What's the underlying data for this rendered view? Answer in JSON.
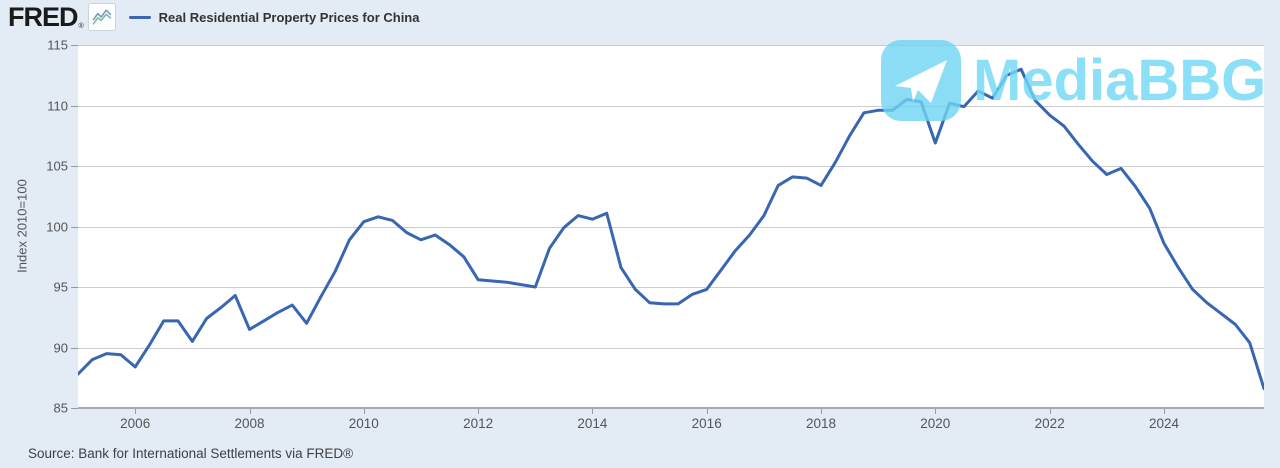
{
  "header": {
    "logo_text": "FRED",
    "logo_registered": "®",
    "legend_label": "Real Residential Property Prices for China"
  },
  "chart_data": {
    "type": "line",
    "title": "Real Residential Property Prices for China",
    "xlabel": "",
    "ylabel": "Index 2010=100",
    "ylim": [
      85,
      115
    ],
    "y_ticks": [
      115,
      110,
      105,
      100,
      95,
      90,
      85
    ],
    "x_tick_years": [
      "2006",
      "2008",
      "2010",
      "2012",
      "2014",
      "2016",
      "2018",
      "2020",
      "2022",
      "2024"
    ],
    "grid": true,
    "legend_position": "top-left",
    "frequency": "Quarterly",
    "series": [
      {
        "name": "Real Residential Property Prices for China",
        "color": "#3866b0",
        "quarters": [
          "2005 Q1",
          "2005 Q2",
          "2005 Q3",
          "2005 Q4",
          "2006 Q1",
          "2006 Q2",
          "2006 Q3",
          "2006 Q4",
          "2007 Q1",
          "2007 Q2",
          "2007 Q3",
          "2007 Q4",
          "2008 Q1",
          "2008 Q2",
          "2008 Q3",
          "2008 Q4",
          "2009 Q1",
          "2009 Q2",
          "2009 Q3",
          "2009 Q4",
          "2010 Q1",
          "2010 Q2",
          "2010 Q3",
          "2010 Q4",
          "2011 Q1",
          "2011 Q2",
          "2011 Q3",
          "2011 Q4",
          "2012 Q1",
          "2012 Q2",
          "2012 Q3",
          "2012 Q4",
          "2013 Q1",
          "2013 Q2",
          "2013 Q3",
          "2013 Q4",
          "2014 Q1",
          "2014 Q2",
          "2014 Q3",
          "2014 Q4",
          "2015 Q1",
          "2015 Q2",
          "2015 Q3",
          "2015 Q4",
          "2016 Q1",
          "2016 Q2",
          "2016 Q3",
          "2016 Q4",
          "2017 Q1",
          "2017 Q2",
          "2017 Q3",
          "2017 Q4",
          "2018 Q1",
          "2018 Q2",
          "2018 Q3",
          "2018 Q4",
          "2019 Q1",
          "2019 Q2",
          "2019 Q3",
          "2019 Q4",
          "2020 Q1",
          "2020 Q2",
          "2020 Q3",
          "2020 Q4",
          "2021 Q1",
          "2021 Q2",
          "2021 Q3",
          "2021 Q4",
          "2022 Q1",
          "2022 Q2",
          "2022 Q3",
          "2022 Q4",
          "2023 Q1",
          "2023 Q2",
          "2023 Q3",
          "2023 Q4",
          "2024 Q1",
          "2024 Q2",
          "2024 Q3",
          "2024 Q4",
          "2025 Q1",
          "2025 Q2",
          "2025 Q3",
          "2025 Q4"
        ],
        "values": [
          87.8,
          89.0,
          89.5,
          89.4,
          88.4,
          90.2,
          92.2,
          92.2,
          90.5,
          92.4,
          93.3,
          94.3,
          91.5,
          92.2,
          92.9,
          93.5,
          92.0,
          94.2,
          96.3,
          98.9,
          100.4,
          100.8,
          100.5,
          99.5,
          98.9,
          99.3,
          98.5,
          97.5,
          95.6,
          95.5,
          95.4,
          95.2,
          95.0,
          98.2,
          99.9,
          100.9,
          100.6,
          101.1,
          96.6,
          94.8,
          93.7,
          93.6,
          93.6,
          94.4,
          94.8,
          96.4,
          98.0,
          99.3,
          100.9,
          103.4,
          104.1,
          104.0,
          103.4,
          105.3,
          107.5,
          109.4,
          109.6,
          109.6,
          110.5,
          110.3,
          106.9,
          110.2,
          109.9,
          111.2,
          110.6,
          112.5,
          113.0,
          110.4,
          109.2,
          108.3,
          106.8,
          105.4,
          104.3,
          104.8,
          103.3,
          101.5,
          98.6,
          96.6,
          94.8,
          93.7,
          92.8,
          91.9,
          90.4,
          86.6
        ]
      }
    ]
  },
  "watermark": {
    "text": "MediaBBG",
    "icon": "telegram-paper-plane",
    "color": "#6fd9f7"
  },
  "footer": {
    "source": "Source: Bank for International Settlements via FRED®"
  },
  "colors": {
    "page_bg": "#e3ebf5",
    "plot_bg": "#ffffff",
    "grid": "#cccccc",
    "axis_line": "#a9a9a9",
    "tick": "#999999",
    "axis_text": "#555555",
    "line": "#3866b0",
    "watermark": "#6fd9f7",
    "header_text": "#333333",
    "source_text": "#404040"
  }
}
